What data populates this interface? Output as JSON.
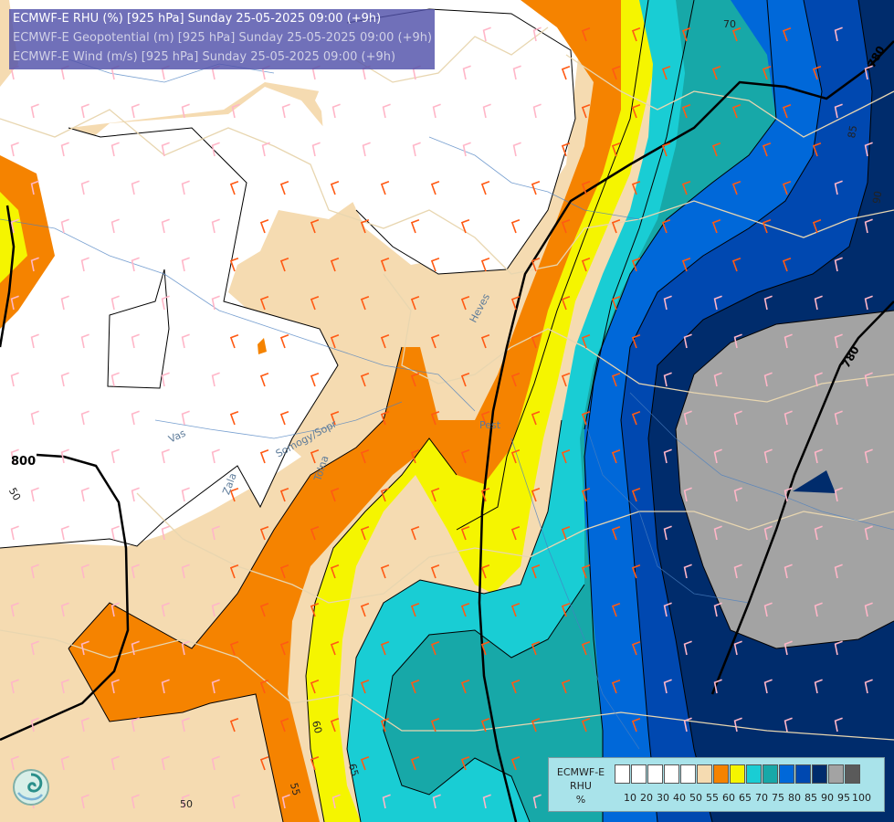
{
  "header": {
    "line1": "ECMWF-E RHU (%) [925 hPa] Sunday 25-05-2025 09:00 (+9h)",
    "line2": "ECMWF-E Geopotential (m) [925 hPa] Sunday 25-05-2025 09:00 (+9h)",
    "line3": "ECMWF-E Wind (m/s) [925 hPa] Sunday 25-05-2025 09:00 (+9h)"
  },
  "legend": {
    "title_line1": "ECMWF-E",
    "title_line2": "RHU",
    "title_line3": "%",
    "colors": [
      "#ffffff",
      "#ffffff",
      "#ffffff",
      "#ffffff",
      "#ffffff",
      "#f5dbb1",
      "#f58300",
      "#f5f500",
      "#19cdd4",
      "#17a8a8",
      "#0068d9",
      "#0048b0",
      "#002c6c",
      "#a3a3a3",
      "#5a5a5a"
    ],
    "ticks": [
      "10",
      "20",
      "30",
      "40",
      "50",
      "55",
      "60",
      "65",
      "70",
      "75",
      "80",
      "85",
      "90",
      "95",
      "100"
    ]
  },
  "contour_labels": {
    "geo_800": "800",
    "geo_780_top": "780",
    "geo_780_right": "780",
    "rhu_50_left": "50",
    "rhu_50_bottom": "50",
    "rhu_55": "55",
    "rhu_60": "60",
    "rhu_65": "65",
    "rhu_70": "70",
    "rhu_85": "85",
    "rhu_90": "90"
  },
  "place_labels": {
    "vas": "Vas",
    "zala": "Zala",
    "somogy": "Somogy/Sopr",
    "tolna": "Tolna",
    "heves": "Heves",
    "pest": "Pest"
  },
  "colors": {
    "rhu_55": "#f5dbb1",
    "rhu_60": "#f58300",
    "rhu_65": "#f5f500",
    "rhu_70": "#19cdd4",
    "rhu_75": "#17a8a8",
    "rhu_80": "#0068d9",
    "rhu_85": "#0048b0",
    "rhu_90": "#002c6c",
    "rhu_95": "#a3a3a3",
    "rhu_100": "#5a5a5a",
    "title_bg": "#5050aa",
    "legend_bg": "#a9e3ea"
  }
}
